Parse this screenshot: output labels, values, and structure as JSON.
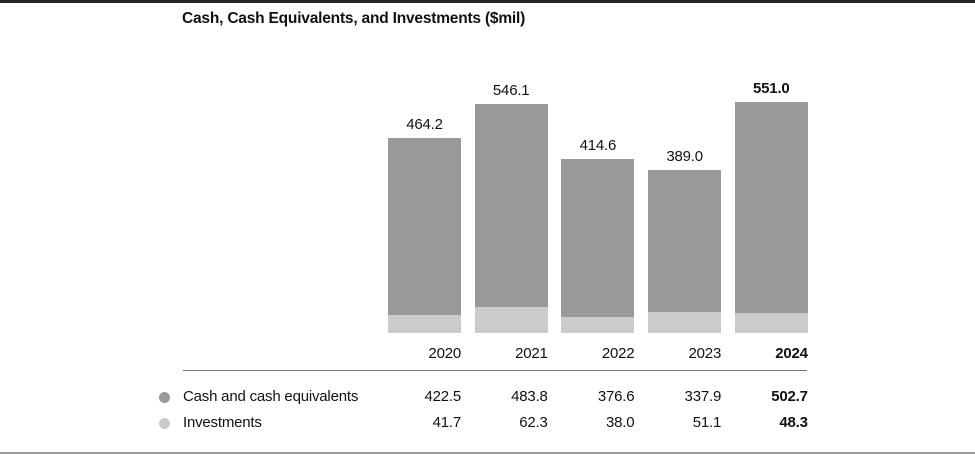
{
  "title": "Cash, Cash Equivalents, and Investments ($mil)",
  "colors": {
    "cash_series": "#999999",
    "investments_series": "#cbcbcb",
    "top_border": "#262626",
    "bottom_border": "#999999",
    "divider": "#777777",
    "text": "#111111"
  },
  "chart_data": {
    "type": "bar",
    "stacked": true,
    "title": "Cash, Cash Equivalents, and Investments ($mil)",
    "categories": [
      "2020",
      "2021",
      "2022",
      "2023",
      "2024"
    ],
    "series": [
      {
        "name": "Cash and cash equivalents",
        "values": [
          422.5,
          483.8,
          376.6,
          337.9,
          502.7
        ],
        "color": "#999999"
      },
      {
        "name": "Investments",
        "values": [
          41.7,
          62.3,
          38.0,
          51.1,
          48.3
        ],
        "color": "#cbcbcb"
      }
    ],
    "totals": [
      464.2,
      546.1,
      414.6,
      389.0,
      551.0
    ],
    "value_format": "1-decimal",
    "emphasized_category": "2024",
    "legend_position": "bottom-table",
    "grid": false,
    "axes_hidden": true
  }
}
